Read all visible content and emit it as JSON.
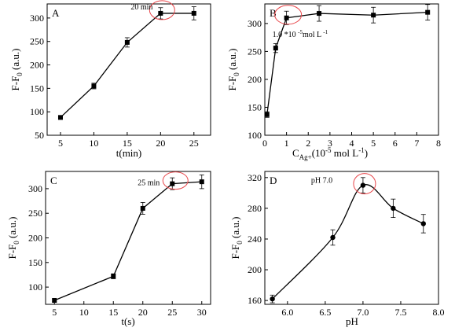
{
  "chart_data": [
    {
      "type": "line",
      "panel": "A",
      "xlabel": "t(min)",
      "ylabel": "F-F0 (a.u.)",
      "xlim": [
        3,
        27.5
      ],
      "ylim": [
        50,
        330
      ],
      "xticks": [
        5,
        10,
        15,
        20,
        25
      ],
      "yticks": [
        50,
        100,
        150,
        200,
        250,
        300
      ],
      "x": [
        5,
        10,
        15,
        20,
        25
      ],
      "y": [
        88,
        155,
        248,
        310,
        310
      ],
      "err": [
        4,
        6,
        10,
        12,
        14
      ],
      "curve": "linear",
      "annotation": "20 min",
      "highlight_x": 20
    },
    {
      "type": "line",
      "panel": "B",
      "xlabel": "CAg+(10-5 mol L-1)",
      "ylabel": "F-F0 (a.u.)",
      "xlim": [
        0,
        8
      ],
      "ylim": [
        100,
        335
      ],
      "xticks": [
        0,
        1,
        2,
        3,
        4,
        5,
        6,
        7,
        8
      ],
      "yticks": [
        100,
        150,
        200,
        250,
        300
      ],
      "x": [
        0.1,
        0.5,
        1.0,
        2.5,
        5.0,
        7.5
      ],
      "y": [
        137,
        256,
        310,
        318,
        315,
        320
      ],
      "err": [
        5,
        8,
        12,
        14,
        14,
        14
      ],
      "curve": "linear",
      "annotation": "1.0 *10 -5mol L-1",
      "highlight_x": 1.0
    },
    {
      "type": "line",
      "panel": "C",
      "xlabel": "t(s)",
      "ylabel": "F-F0 (a.u.)",
      "xlim": [
        3.5,
        31.5
      ],
      "ylim": [
        65,
        335
      ],
      "xticks": [
        5,
        10,
        15,
        20,
        25,
        30
      ],
      "yticks": [
        100,
        150,
        200,
        250,
        300
      ],
      "x": [
        5,
        15,
        20,
        25,
        30
      ],
      "y": [
        73,
        122,
        260,
        310,
        314
      ],
      "err": [
        3,
        5,
        12,
        12,
        14
      ],
      "curve": "linear",
      "annotation": "25 min",
      "highlight_x": 25
    },
    {
      "type": "line",
      "panel": "D",
      "xlabel": "pH",
      "ylabel": "F-F0 (a.u.)",
      "xlim": [
        5.7,
        8.0
      ],
      "ylim": [
        155,
        328
      ],
      "xticks": [
        6.0,
        6.5,
        7.0,
        7.5,
        8.0
      ],
      "xtick_labels": [
        "6.0",
        "6.5",
        "7.0",
        "7.5",
        "8.0"
      ],
      "yticks": [
        160,
        200,
        240,
        280,
        320
      ],
      "x": [
        5.8,
        6.6,
        7.0,
        7.4,
        7.8
      ],
      "y": [
        162,
        242,
        310,
        280,
        260
      ],
      "err": [
        5,
        10,
        10,
        12,
        12
      ],
      "curve": "smooth",
      "annotation": "pH 7.0",
      "highlight_x": 7.0
    }
  ],
  "colors": {
    "line": "#000000",
    "highlight": "#e8474b"
  }
}
